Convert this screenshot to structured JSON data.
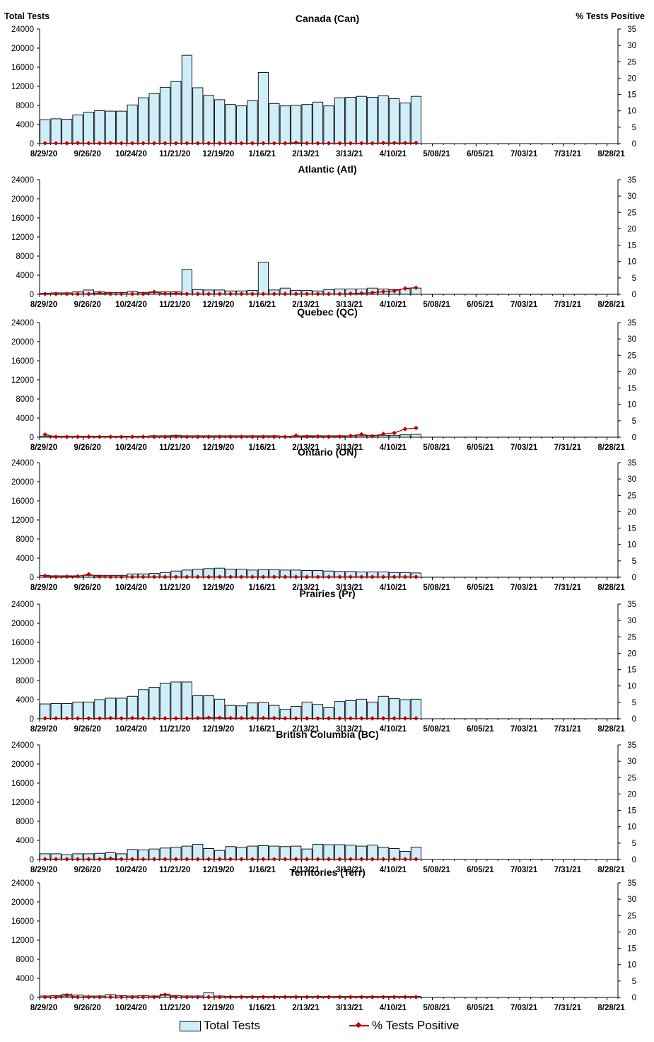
{
  "header": {
    "left_axis_title": "Total Tests",
    "right_axis_title": "% Tests Positive"
  },
  "legend": {
    "bars_label": "Total Tests",
    "line_label": "% Tests Positive"
  },
  "colors": {
    "bar_fill": "#cfeefa",
    "bar_stroke": "#000000",
    "line": "#c00000"
  },
  "chart_data": [
    {
      "type": "bar",
      "title": "Canada (Can)",
      "x_ticks": [
        "8/29/20",
        "9/26/20",
        "10/24/20",
        "11/21/20",
        "12/19/20",
        "1/16/21",
        "2/13/21",
        "3/13/21",
        "4/10/21",
        "5/08/21",
        "6/05/21",
        "7/03/21",
        "7/31/21",
        "8/28/21"
      ],
      "y_ticks": [
        "0",
        "4000",
        "8000",
        "12000",
        "16000",
        "20000",
        "24000"
      ],
      "y2_ticks": [
        "0",
        "5",
        "10",
        "15",
        "20",
        "25",
        "30",
        "35"
      ],
      "ylim": [
        0,
        24000
      ],
      "y2lim": [
        0,
        35
      ],
      "series": [
        {
          "name": "Total Tests",
          "kind": "bar",
          "values": [
            5000,
            5200,
            5100,
            6000,
            6600,
            6900,
            6800,
            6800,
            8100,
            9600,
            10500,
            11800,
            13000,
            18500,
            11700,
            10100,
            9200,
            8200,
            7900,
            9000,
            14900,
            8400,
            7900,
            8000,
            8200,
            8700,
            7900,
            9600,
            9700,
            9900,
            9700,
            10000,
            9400,
            8500,
            9900
          ]
        },
        {
          "name": "% Tests Positive",
          "kind": "line",
          "values": [
            0.1,
            0.1,
            0.1,
            0.2,
            0.1,
            0.1,
            0.2,
            0.1,
            0.1,
            0.1,
            0.1,
            0.1,
            0.1,
            0.1,
            0.1,
            0.1,
            0.1,
            0.1,
            0.1,
            0.1,
            0.1,
            0.1,
            0.1,
            0.3,
            0.1,
            0.1,
            0.1,
            0.1,
            0.1,
            0.1,
            0.1,
            0.2,
            0.2,
            0.2,
            0.2
          ]
        }
      ]
    },
    {
      "type": "bar",
      "title": "Atlantic (Atl)",
      "x_ticks": [
        "8/29/20",
        "9/26/20",
        "10/24/20",
        "11/21/20",
        "12/19/20",
        "1/16/21",
        "2/13/21",
        "3/13/21",
        "4/10/21",
        "5/08/21",
        "6/05/21",
        "7/03/21",
        "7/31/21",
        "8/28/21"
      ],
      "y_ticks": [
        "0",
        "4000",
        "8000",
        "12000",
        "16000",
        "20000",
        "24000"
      ],
      "y2_ticks": [
        "0",
        "5",
        "10",
        "15",
        "20",
        "25",
        "30",
        "35"
      ],
      "ylim": [
        0,
        24000
      ],
      "y2lim": [
        0,
        35
      ],
      "series": [
        {
          "name": "Total Tests",
          "kind": "bar",
          "values": [
            200,
            300,
            300,
            500,
            900,
            500,
            400,
            400,
            600,
            400,
            500,
            500,
            500,
            5200,
            1000,
            900,
            900,
            700,
            700,
            800,
            6700,
            900,
            1300,
            800,
            800,
            700,
            1000,
            1100,
            1100,
            1100,
            1300,
            1100,
            1000,
            1100,
            1300
          ]
        },
        {
          "name": "% Tests Positive",
          "kind": "line",
          "values": [
            0.1,
            0.1,
            0.1,
            0.1,
            0.1,
            0.4,
            0.1,
            0.1,
            0.1,
            0.1,
            0.7,
            0.2,
            0.3,
            0.1,
            0.1,
            0.1,
            0.1,
            0.1,
            0.1,
            0.1,
            0.1,
            0.1,
            0.1,
            0.1,
            0.1,
            0.1,
            0.1,
            0.1,
            0.2,
            0.3,
            0.5,
            0.8,
            1.0,
            1.8,
            2.0
          ]
        }
      ]
    },
    {
      "type": "bar",
      "title": "Quebec (QC)",
      "x_ticks": [
        "8/29/20",
        "9/26/20",
        "10/24/20",
        "11/21/20",
        "12/19/20",
        "1/16/21",
        "2/13/21",
        "3/13/21",
        "4/10/21",
        "5/08/21",
        "6/05/21",
        "7/03/21",
        "7/31/21",
        "8/28/21"
      ],
      "y_ticks": [
        "0",
        "4000",
        "8000",
        "12000",
        "16000",
        "20000",
        "24000"
      ],
      "y2_ticks": [
        "0",
        "5",
        "10",
        "15",
        "20",
        "25",
        "30",
        "35"
      ],
      "ylim": [
        0,
        24000
      ],
      "y2lim": [
        0,
        35
      ],
      "series": [
        {
          "name": "Total Tests",
          "kind": "bar",
          "values": [
            200,
            200,
            200,
            200,
            200,
            200,
            200,
            200,
            200,
            200,
            300,
            300,
            400,
            300,
            300,
            300,
            300,
            300,
            300,
            300,
            300,
            300,
            200,
            200,
            300,
            300,
            300,
            300,
            300,
            300,
            400,
            400,
            400,
            500,
            600
          ]
        },
        {
          "name": "% Tests Positive",
          "kind": "line",
          "values": [
            0.8,
            0.1,
            0.1,
            0.1,
            0.1,
            0.1,
            0.1,
            0.1,
            0.1,
            0.1,
            0.1,
            0.1,
            0.2,
            0.1,
            0.1,
            0.1,
            0.1,
            0.1,
            0.1,
            0.1,
            0.1,
            0.1,
            0.1,
            0.5,
            0.2,
            0.2,
            0.1,
            0.2,
            0.4,
            0.9,
            0.3,
            1.0,
            1.3,
            2.5,
            2.8
          ]
        }
      ]
    },
    {
      "type": "bar",
      "title": "Ontario (ON)",
      "x_ticks": [
        "8/29/20",
        "9/26/20",
        "10/24/20",
        "11/21/20",
        "12/19/20",
        "1/16/21",
        "2/13/21",
        "3/13/21",
        "4/10/21",
        "5/08/21",
        "6/05/21",
        "7/03/21",
        "7/31/21",
        "8/28/21"
      ],
      "y_ticks": [
        "0",
        "4000",
        "8000",
        "12000",
        "16000",
        "20000",
        "24000"
      ],
      "y2_ticks": [
        "0",
        "5",
        "10",
        "15",
        "20",
        "25",
        "30",
        "35"
      ],
      "ylim": [
        0,
        24000
      ],
      "y2lim": [
        0,
        35
      ],
      "series": [
        {
          "name": "Total Tests",
          "kind": "bar",
          "values": [
            400,
            300,
            300,
            300,
            400,
            400,
            400,
            400,
            700,
            700,
            800,
            1000,
            1300,
            1500,
            1700,
            1800,
            1900,
            1700,
            1700,
            1500,
            1600,
            1600,
            1500,
            1500,
            1400,
            1400,
            1300,
            1200,
            1200,
            1100,
            1100,
            1100,
            1000,
            1000,
            900
          ]
        },
        {
          "name": "% Tests Positive",
          "kind": "line",
          "values": [
            0.4,
            0.1,
            0.2,
            0.3,
            0.9,
            0.2,
            0.1,
            0.1,
            0.1,
            0.1,
            0.1,
            0.1,
            0.1,
            0.1,
            0.1,
            0.1,
            0.1,
            0.1,
            0.1,
            0.1,
            0.1,
            0.1,
            0.1,
            0.1,
            0.1,
            0.1,
            0.1,
            0.1,
            0.1,
            0.1,
            0.1,
            0.1,
            0.1,
            0.1,
            0.1
          ]
        }
      ]
    },
    {
      "type": "bar",
      "title": "Prairies (Pr)",
      "x_ticks": [
        "8/29/20",
        "9/26/20",
        "10/24/20",
        "11/21/20",
        "12/19/20",
        "1/16/21",
        "2/13/21",
        "3/13/21",
        "4/10/21",
        "5/08/21",
        "6/05/21",
        "7/03/21",
        "7/31/21",
        "8/28/21"
      ],
      "y_ticks": [
        "0",
        "4000",
        "8000",
        "12000",
        "16000",
        "20000",
        "24000"
      ],
      "y2_ticks": [
        "0",
        "5",
        "10",
        "15",
        "20",
        "25",
        "30",
        "35"
      ],
      "ylim": [
        0,
        24000
      ],
      "y2lim": [
        0,
        35
      ],
      "series": [
        {
          "name": "Total Tests",
          "kind": "bar",
          "values": [
            3100,
            3200,
            3200,
            3500,
            3500,
            4000,
            4300,
            4300,
            4700,
            6100,
            6600,
            7400,
            7700,
            7700,
            4800,
            4800,
            4100,
            2800,
            2700,
            3300,
            3400,
            2800,
            2000,
            2600,
            3500,
            3000,
            2300,
            3600,
            3800,
            4100,
            3500,
            4700,
            4200,
            4000,
            4100
          ]
        },
        {
          "name": "% Tests Positive",
          "kind": "line",
          "values": [
            0.1,
            0.1,
            0.1,
            0.1,
            0.1,
            0.1,
            0.2,
            0.1,
            0.2,
            0.1,
            0.1,
            0.1,
            0.1,
            0.1,
            0.2,
            0.3,
            0.3,
            0.2,
            0.2,
            0.2,
            0.2,
            0.2,
            0.1,
            0.1,
            0.1,
            0.1,
            0.1,
            0.1,
            0.1,
            0.1,
            0.1,
            0.1,
            0.1,
            0.1,
            0.1
          ]
        }
      ]
    },
    {
      "type": "bar",
      "title": "British Columbia (BC)",
      "x_ticks": [
        "8/29/20",
        "9/26/20",
        "10/24/20",
        "11/21/20",
        "12/19/20",
        "1/16/21",
        "2/13/21",
        "3/13/21",
        "4/10/21",
        "5/08/21",
        "6/05/21",
        "7/03/21",
        "7/31/21",
        "8/28/21"
      ],
      "y_ticks": [
        "0",
        "4000",
        "8000",
        "12000",
        "16000",
        "20000",
        "24000"
      ],
      "y2_ticks": [
        "0",
        "5",
        "10",
        "15",
        "20",
        "25",
        "30",
        "35"
      ],
      "ylim": [
        0,
        24000
      ],
      "y2lim": [
        0,
        35
      ],
      "series": [
        {
          "name": "Total Tests",
          "kind": "bar",
          "values": [
            1200,
            1200,
            1000,
            1200,
            1200,
            1300,
            1400,
            1200,
            2100,
            2000,
            2200,
            2400,
            2600,
            2800,
            3200,
            2300,
            1900,
            2700,
            2600,
            2800,
            2900,
            2800,
            2700,
            2800,
            2200,
            3200,
            3100,
            3100,
            3000,
            2800,
            3000,
            2600,
            2300,
            1700,
            2600
          ]
        },
        {
          "name": "% Tests Positive",
          "kind": "line",
          "values": [
            0.1,
            0.1,
            0.1,
            0.1,
            0.1,
            0.1,
            0.3,
            0.1,
            0.1,
            0.1,
            0.1,
            0.1,
            0.1,
            0.1,
            0.1,
            0.1,
            0.1,
            0.1,
            0.1,
            0.1,
            0.1,
            0.1,
            0.1,
            0.1,
            0.1,
            0.1,
            0.1,
            0.1,
            0.1,
            0.1,
            0.1,
            0.1,
            0.1,
            0.1,
            0.1
          ]
        }
      ]
    },
    {
      "type": "bar",
      "title": "Territories (Terr)",
      "x_ticks": [
        "8/29/20",
        "9/26/20",
        "10/24/20",
        "11/21/20",
        "12/19/20",
        "1/16/21",
        "2/13/21",
        "3/13/21",
        "4/10/21",
        "5/08/21",
        "6/05/21",
        "7/03/21",
        "7/31/21",
        "8/28/21"
      ],
      "y_ticks": [
        "0",
        "4000",
        "8000",
        "12000",
        "16000",
        "20000",
        "24000"
      ],
      "y2_ticks": [
        "0",
        "5",
        "10",
        "15",
        "20",
        "25",
        "30",
        "35"
      ],
      "ylim": [
        0,
        24000
      ],
      "y2lim": [
        0,
        35
      ],
      "series": [
        {
          "name": "Total Tests",
          "kind": "bar",
          "values": [
            300,
            400,
            700,
            500,
            300,
            300,
            600,
            400,
            300,
            400,
            300,
            700,
            400,
            300,
            300,
            1000,
            300,
            200,
            200,
            200,
            200,
            200,
            200,
            200,
            200,
            200,
            200,
            200,
            200,
            200,
            200,
            200,
            200,
            200,
            200
          ]
        },
        {
          "name": "% Tests Positive",
          "kind": "line",
          "values": [
            0.1,
            0.1,
            0.6,
            0.1,
            0.1,
            0.1,
            0.1,
            0.1,
            0.1,
            0.1,
            0.1,
            0.8,
            0.1,
            0.1,
            0.1,
            0.1,
            0.1,
            0.1,
            0.1,
            0.1,
            0.1,
            0.1,
            0.1,
            0.1,
            0.1,
            0.1,
            0.1,
            0.1,
            0.1,
            0.1,
            0.1,
            0.1,
            0.1,
            0.1,
            0.1
          ]
        }
      ]
    }
  ]
}
